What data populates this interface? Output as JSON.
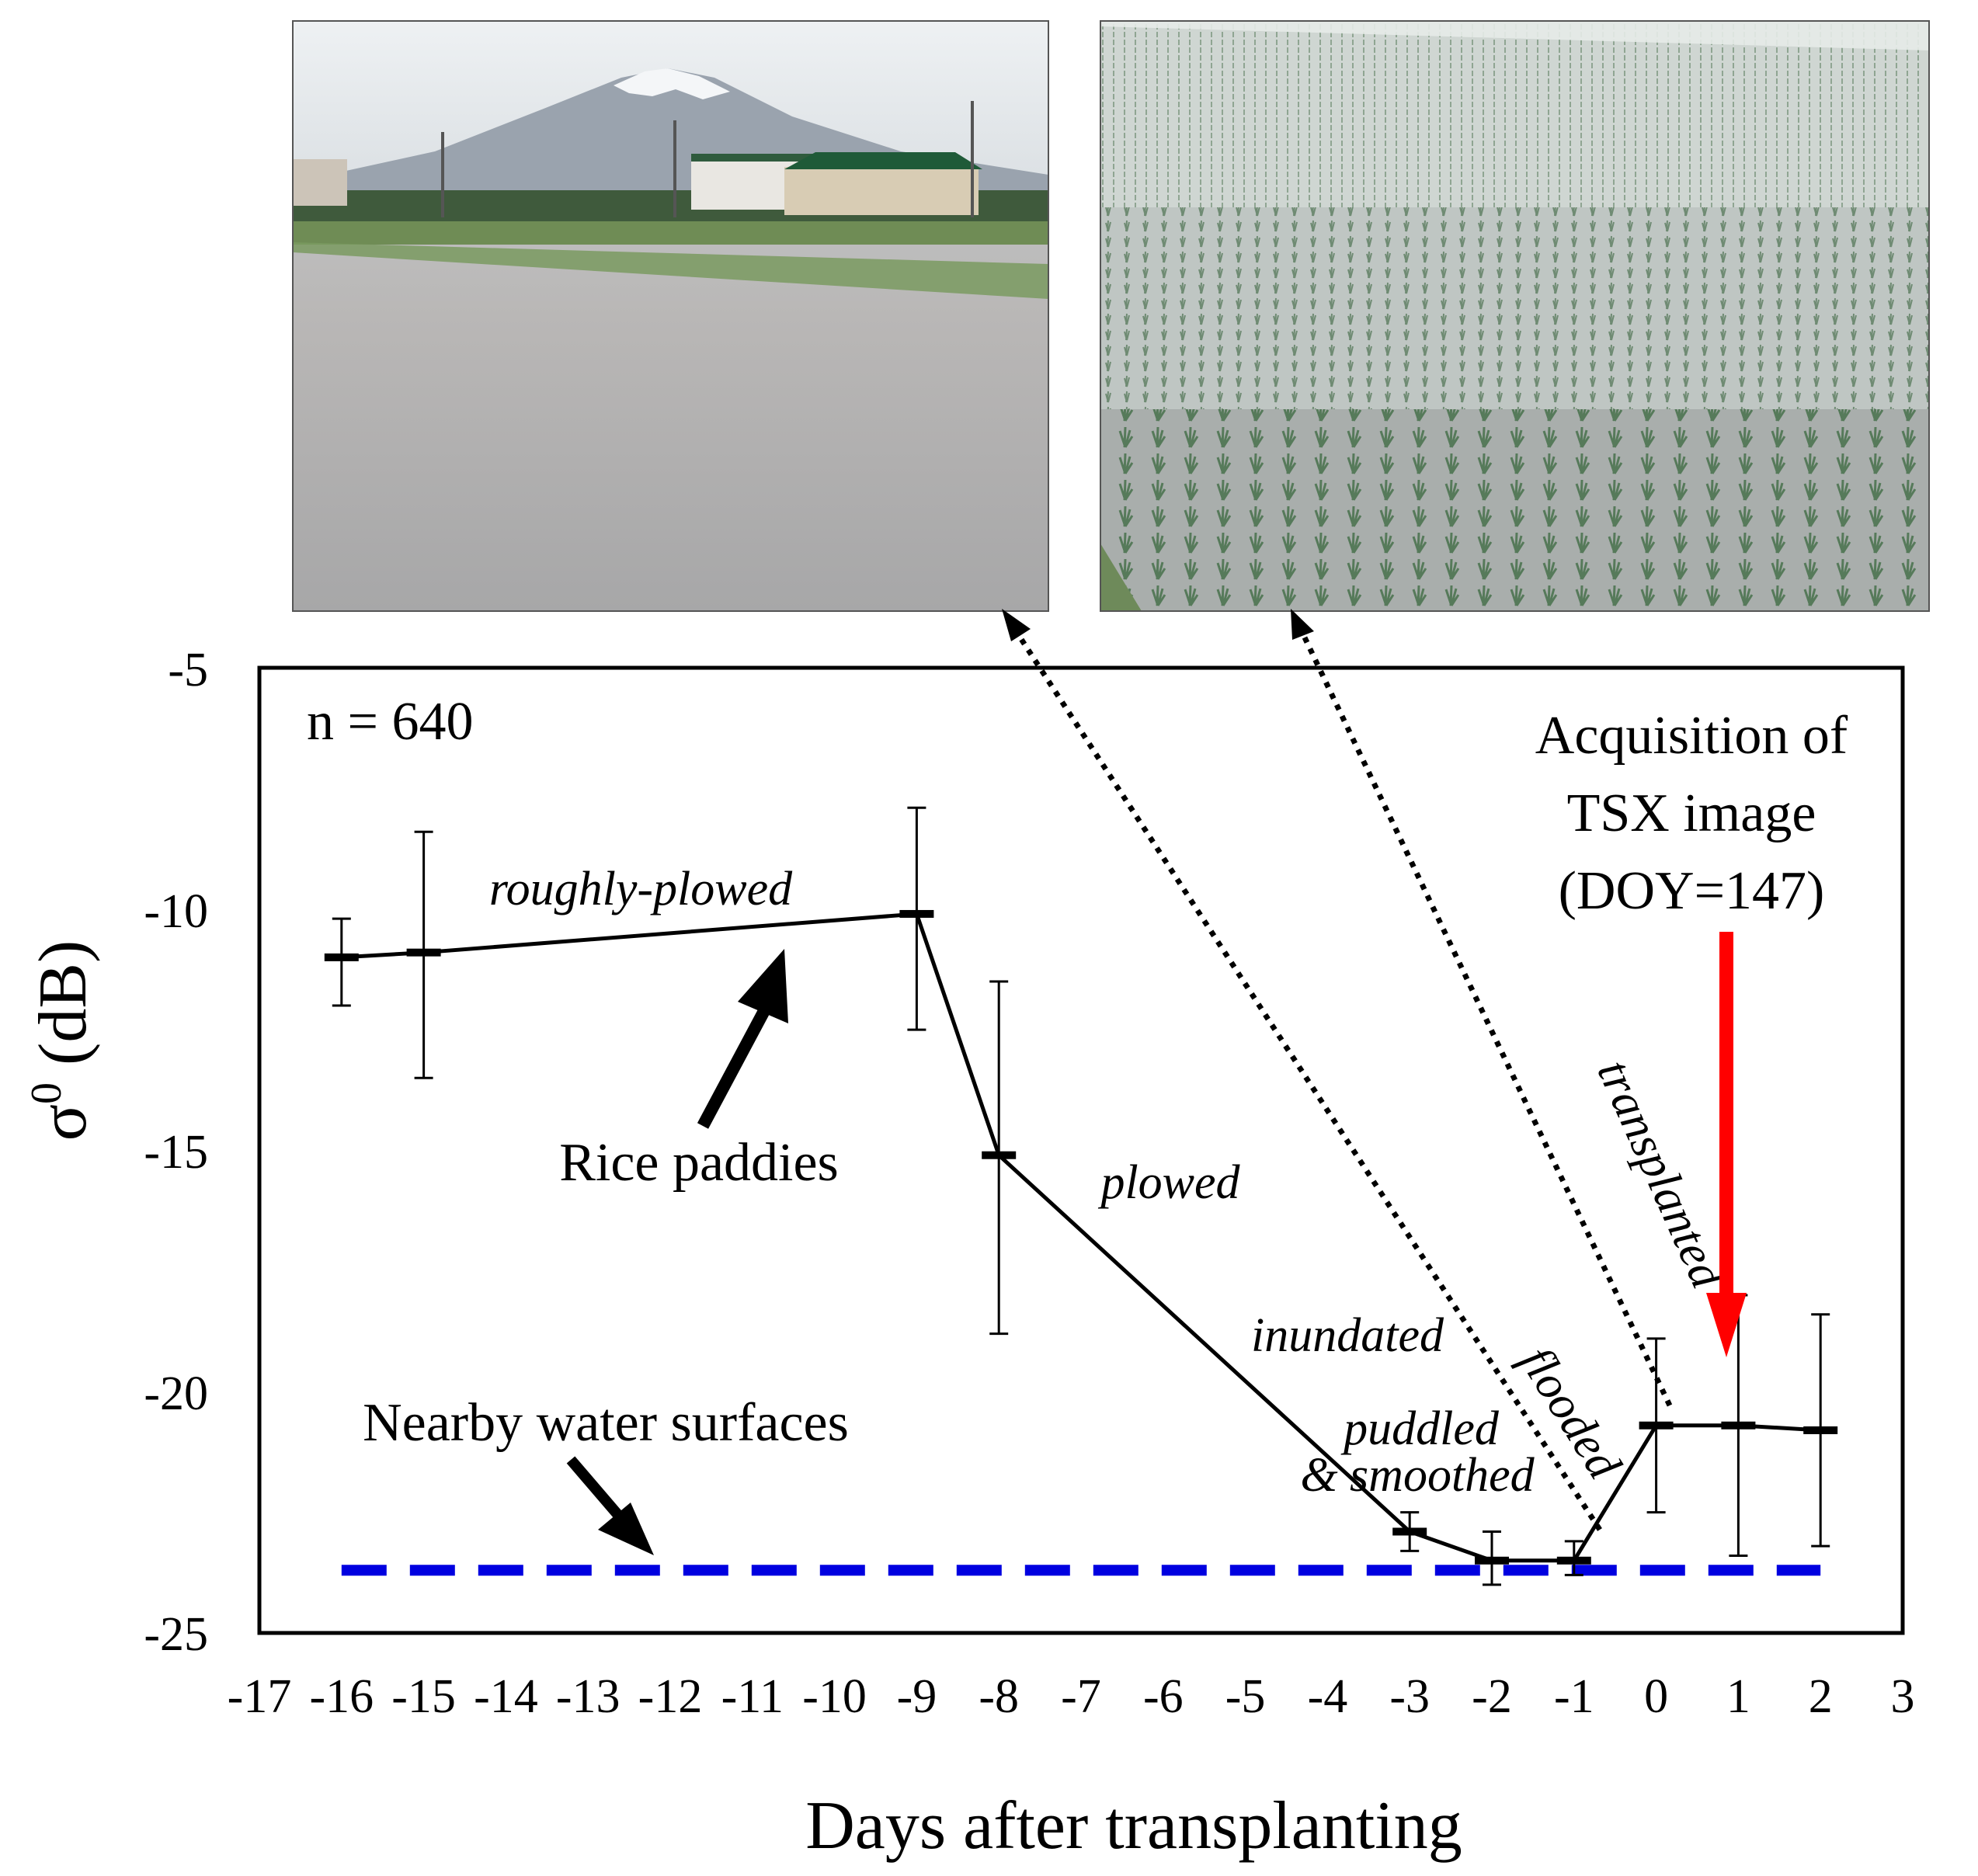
{
  "chart_data": {
    "type": "line",
    "xlabel": "Days after transplanting",
    "ylabel": "σ0 (dB)",
    "xlim": [
      -17,
      3
    ],
    "ylim": [
      -25,
      -5
    ],
    "x_ticks": [
      -17,
      -16,
      -15,
      -14,
      -13,
      -12,
      -11,
      -10,
      -9,
      -8,
      -7,
      -6,
      -5,
      -4,
      -3,
      -2,
      -1,
      0,
      1,
      2,
      3
    ],
    "y_ticks": [
      -5,
      -10,
      -15,
      -20,
      -25
    ],
    "sample_size_label": "n = 640",
    "series": [
      {
        "name": "Rice paddies",
        "color": "#000000",
        "points": [
          {
            "x": -16,
            "y": -11.0,
            "err_low": -12.0,
            "err_high": -10.2
          },
          {
            "x": -15,
            "y": -10.9,
            "err_low": -13.5,
            "err_high": -8.4
          },
          {
            "x": -9,
            "y": -10.1,
            "err_low": -12.5,
            "err_high": -7.9
          },
          {
            "x": -8,
            "y": -15.1,
            "err_low": -18.8,
            "err_high": -11.5
          },
          {
            "x": -3,
            "y": -22.9,
            "err_low": -23.3,
            "err_high": -22.5
          },
          {
            "x": -2,
            "y": -23.5,
            "err_low": -24.0,
            "err_high": -22.9
          },
          {
            "x": -1,
            "y": -23.5,
            "err_low": -23.8,
            "err_high": -23.1
          },
          {
            "x": 0,
            "y": -20.7,
            "err_low": -22.5,
            "err_high": -18.9
          },
          {
            "x": 1,
            "y": -20.7,
            "err_low": -23.4,
            "err_high": -18.0
          },
          {
            "x": 2,
            "y": -20.8,
            "err_low": -23.2,
            "err_high": -18.4
          }
        ]
      },
      {
        "name": "Nearby water surfaces",
        "color": "#0000e0",
        "style": "dashed",
        "y": -23.7,
        "x_range": [
          -16,
          2
        ]
      }
    ],
    "annotations": {
      "roughly_plowed": "roughly-plowed",
      "plowed": "plowed",
      "inundated": "inundated",
      "puddled_line1": "puddled",
      "puddled_line2": "& smoothed",
      "flooded": "flooded",
      "transplanted": "transplanted",
      "acquisition_line1": "Acquisition of",
      "acquisition_line2": "TSX image",
      "acquisition_line3": "(DOY=147)",
      "rice_paddies": "Rice paddies",
      "water_surfaces": "Nearby water surfaces"
    },
    "acquisition_arrow_color": "#ff0000"
  },
  "photos": [
    {
      "name": "flooded-paddy-photo",
      "subject": "flooded rice paddy with mountain and buildings in background"
    },
    {
      "name": "transplanted-paddy-photo",
      "subject": "paddy with rows of transplanted rice seedlings"
    }
  ]
}
